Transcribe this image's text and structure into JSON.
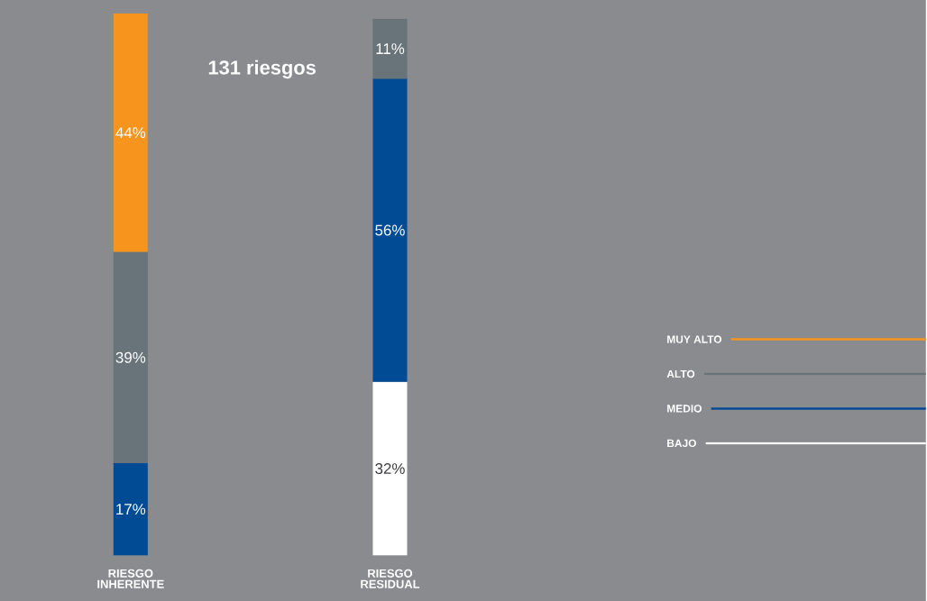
{
  "chart_data": {
    "type": "bar",
    "stacked": true,
    "title": "131 riesgos",
    "categories": [
      "RIESGO INHERENTE",
      "RIESGO RESIDUAL"
    ],
    "series": [
      {
        "name": "BAJO",
        "color": "#ffffff",
        "values": [
          null,
          32
        ],
        "value_labels": [
          null,
          "32%"
        ]
      },
      {
        "name": "MEDIO",
        "color": "#004b93",
        "values": [
          17,
          56
        ],
        "value_labels": [
          "17%",
          "56%"
        ]
      },
      {
        "name": "ALTO",
        "color": "#68737a",
        "values": [
          39,
          11
        ],
        "value_labels": [
          "39%",
          "11%"
        ]
      },
      {
        "name": "MUY ALTO",
        "color": "#f7941d",
        "values": [
          44,
          null
        ],
        "value_labels": [
          "44%",
          null
        ]
      }
    ],
    "legend": "right"
  }
}
